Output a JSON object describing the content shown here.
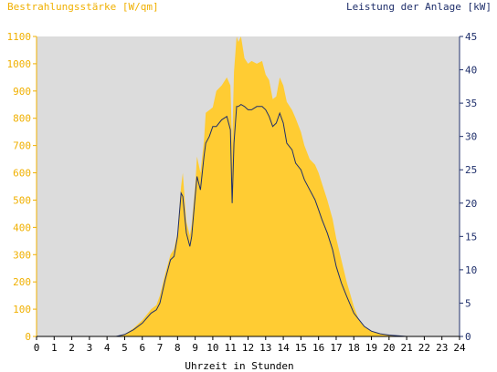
{
  "chart_data": {
    "type": "area",
    "title_left": "Bestrahlungsstärke [W/qm]",
    "title_right": "Leistung der Anlage [kW]",
    "xlabel": "Uhrzeit in Stunden",
    "xlim": [
      0,
      24
    ],
    "x_ticks": [
      "0",
      "1",
      "2",
      "3",
      "4",
      "5",
      "6",
      "7",
      "8",
      "9",
      "10",
      "11",
      "12",
      "13",
      "14",
      "15",
      "16",
      "17",
      "18",
      "19",
      "20",
      "21",
      "22",
      "23",
      "24"
    ],
    "ylim_left": [
      0,
      1100
    ],
    "y_ticks_left": [
      "0",
      "100",
      "200",
      "300",
      "400",
      "500",
      "600",
      "700",
      "800",
      "900",
      "1000",
      "1100"
    ],
    "ylim_right": [
      0,
      45
    ],
    "y_ticks_right": [
      "0",
      "5",
      "10",
      "15",
      "20",
      "25",
      "30",
      "35",
      "40",
      "45"
    ],
    "grid": false,
    "colors": {
      "plot_background": "#dcdcdc",
      "irradiance_fill": "#ffcc33",
      "power_line": "#1f2f6b",
      "left_axis": "#f0b000",
      "right_axis": "#1f2f6b",
      "axis_text": "#000000"
    },
    "series": [
      {
        "name": "Bestrahlungsstärke [W/qm]",
        "axis": "left",
        "style": "area",
        "x": [
          0,
          4.5,
          5,
          5.5,
          6,
          6.5,
          6.8,
          7,
          7.3,
          7.6,
          7.8,
          8,
          8.2,
          8.3,
          8.5,
          8.7,
          8.8,
          9,
          9.1,
          9.3,
          9.5,
          9.6,
          9.8,
          10,
          10.2,
          10.5,
          10.8,
          11,
          11.1,
          11.2,
          11.35,
          11.45,
          11.6,
          11.8,
          12,
          12.2,
          12.5,
          12.8,
          13,
          13.2,
          13.4,
          13.6,
          13.8,
          14,
          14.2,
          14.5,
          14.7,
          15,
          15.2,
          15.5,
          15.8,
          16,
          16.2,
          16.5,
          16.8,
          17,
          17.3,
          17.6,
          18,
          18.3,
          18.6,
          19,
          19.5,
          20,
          20.5,
          21,
          24
        ],
        "values": [
          0,
          0,
          8,
          30,
          60,
          100,
          115,
          150,
          230,
          300,
          320,
          380,
          550,
          600,
          420,
          370,
          410,
          550,
          660,
          600,
          720,
          820,
          830,
          840,
          900,
          920,
          950,
          920,
          700,
          970,
          1100,
          1080,
          1100,
          1020,
          1000,
          1010,
          1000,
          1010,
          960,
          940,
          870,
          880,
          950,
          920,
          860,
          830,
          800,
          750,
          700,
          650,
          630,
          600,
          560,
          500,
          430,
          360,
          280,
          200,
          110,
          60,
          35,
          20,
          10,
          5,
          2,
          0,
          0
        ]
      },
      {
        "name": "Leistung der Anlage [kW]",
        "axis": "right",
        "style": "line",
        "x": [
          0,
          4.5,
          5,
          5.5,
          6,
          6.5,
          6.8,
          7,
          7.3,
          7.6,
          7.8,
          8,
          8.2,
          8.3,
          8.5,
          8.7,
          8.8,
          9,
          9.1,
          9.3,
          9.5,
          9.6,
          9.8,
          10,
          10.2,
          10.5,
          10.8,
          11,
          11.1,
          11.2,
          11.35,
          11.45,
          11.6,
          11.8,
          12,
          12.2,
          12.5,
          12.8,
          13,
          13.2,
          13.4,
          13.6,
          13.8,
          14,
          14.2,
          14.5,
          14.7,
          15,
          15.2,
          15.5,
          15.8,
          16,
          16.2,
          16.5,
          16.8,
          17,
          17.3,
          17.6,
          18,
          18.3,
          18.6,
          19,
          19.5,
          20,
          20.5,
          21,
          24
        ],
        "values": [
          0,
          0,
          0.3,
          1,
          2,
          3.5,
          4,
          5,
          8.5,
          11.5,
          12,
          15,
          21.5,
          21,
          15.5,
          13.5,
          15,
          21,
          24,
          22,
          27,
          29,
          30,
          31.5,
          31.5,
          32.5,
          33,
          31,
          20,
          29,
          34.5,
          34.5,
          34.8,
          34.5,
          34,
          34,
          34.5,
          34.5,
          34,
          33,
          31.5,
          32,
          33.5,
          32,
          29,
          28,
          26,
          25,
          23.5,
          22,
          20.5,
          19,
          17.5,
          15.5,
          13,
          10.5,
          8,
          6,
          3.5,
          2.5,
          1.5,
          0.8,
          0.4,
          0.2,
          0.1,
          0,
          0
        ]
      }
    ]
  }
}
